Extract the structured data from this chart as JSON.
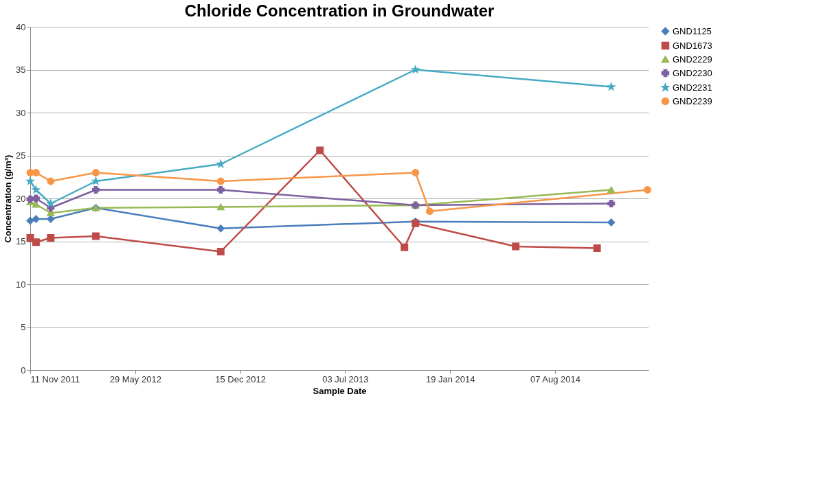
{
  "chart_data": {
    "type": "line",
    "title": "Chloride Concentration in Groundwater",
    "xlabel": "Sample Date",
    "ylabel": "Concentration (g/m³)",
    "xlim": [
      "2011-11-11",
      "2015-02-01"
    ],
    "xticks": [
      {
        "value": "2011-11-11",
        "label": "11 Nov 2011"
      },
      {
        "value": "2012-05-29",
        "label": "29 May 2012"
      },
      {
        "value": "2012-12-15",
        "label": "15 Dec 2012"
      },
      {
        "value": "2013-07-03",
        "label": "03 Jul 2013"
      },
      {
        "value": "2014-01-19",
        "label": "19 Jan 2014"
      },
      {
        "value": "2014-08-07",
        "label": "07 Aug 2014"
      }
    ],
    "ylim": [
      0,
      40
    ],
    "yticks": [
      0,
      5,
      10,
      15,
      20,
      25,
      30,
      35,
      40
    ],
    "grid": "y",
    "legend": "right",
    "line_style": "solid",
    "series": [
      {
        "name": "GND1125",
        "color": "#4a7ebb",
        "marker": "diamond",
        "x": [
          "2011-11-11",
          "2011-11-22",
          "2011-12-20",
          "2012-03-15",
          "2012-11-08",
          "2013-11-14",
          "2014-11-22"
        ],
        "values": [
          17.4,
          17.6,
          17.6,
          18.9,
          16.5,
          17.3,
          17.2
        ]
      },
      {
        "name": "GND1673",
        "color": "#be4b48",
        "marker": "square",
        "x": [
          "2011-11-11",
          "2011-11-22",
          "2011-12-20",
          "2012-03-15",
          "2012-11-08",
          "2013-05-16",
          "2013-10-24",
          "2013-11-14",
          "2014-05-24",
          "2014-10-26"
        ],
        "values": [
          15.4,
          14.9,
          15.4,
          15.6,
          13.8,
          25.6,
          14.3,
          17.1,
          14.4,
          14.2
        ]
      },
      {
        "name": "GND2229",
        "color": "#98b954",
        "marker": "triangle",
        "x": [
          "2011-11-11",
          "2011-11-22",
          "2011-12-20",
          "2012-03-15",
          "2012-11-08",
          "2013-11-14",
          "2014-11-22"
        ],
        "values": [
          19.6,
          19.3,
          18.3,
          18.9,
          19.0,
          19.2,
          21.0
        ]
      },
      {
        "name": "GND2230",
        "color": "#7d60a0",
        "marker": "cross",
        "x": [
          "2011-11-11",
          "2011-11-22",
          "2011-12-20",
          "2012-03-15",
          "2012-11-08",
          "2013-11-14",
          "2014-11-22"
        ],
        "values": [
          19.9,
          20.0,
          18.9,
          21.0,
          21.0,
          19.2,
          19.4
        ]
      },
      {
        "name": "GND2231",
        "color": "#46aac5",
        "marker": "star",
        "x": [
          "2011-11-11",
          "2011-11-22",
          "2011-12-20",
          "2012-03-15",
          "2012-11-08",
          "2013-11-14",
          "2014-11-22"
        ],
        "values": [
          22.0,
          21.0,
          19.4,
          22.0,
          24.0,
          35.0,
          33.0
        ]
      },
      {
        "name": "GND2239",
        "color": "#f79646",
        "marker": "circle",
        "x": [
          "2011-11-11",
          "2011-11-22",
          "2011-12-20",
          "2012-03-15",
          "2012-11-08",
          "2013-11-14",
          "2013-12-11",
          "2015-01-30"
        ],
        "values": [
          23.0,
          23.0,
          22.0,
          23.0,
          22.0,
          23.0,
          18.5,
          21.0
        ]
      }
    ]
  }
}
